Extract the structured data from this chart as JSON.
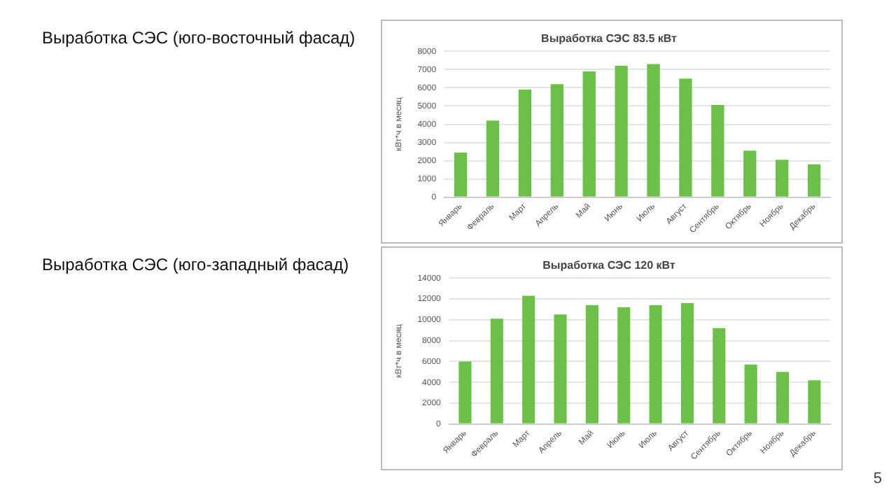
{
  "chart_data": [
    {
      "type": "bar",
      "subtitle": "Выработка СЭС (юго-восточный фасад)",
      "title": "Выработка СЭС 83.5 кВт",
      "ylabel": "кВт*ч в месяц",
      "categories": [
        "Январь",
        "Февраль",
        "Март",
        "Апрель",
        "Май",
        "Июнь",
        "Июль",
        "Август",
        "Сентябрь",
        "Октябрь",
        "Ноябрь",
        "Декабрь"
      ],
      "values": [
        2450,
        4200,
        5900,
        6200,
        6900,
        7200,
        7300,
        6500,
        5050,
        2550,
        2050,
        1800
      ],
      "color": "#6cc04a",
      "ylim": [
        0,
        8000
      ],
      "yticks": [
        0,
        1000,
        2000,
        3000,
        4000,
        5000,
        6000,
        7000,
        8000
      ],
      "grid": "y"
    },
    {
      "type": "bar",
      "subtitle": "Выработка СЭС (юго-западный фасад)",
      "title": "Выработка СЭС 120 кВт",
      "ylabel": "кВт*ч в месяц",
      "categories": [
        "Январь",
        "Февраль",
        "Март",
        "Апрель",
        "Май",
        "Июнь",
        "Июль",
        "Август",
        "Сентябрь",
        "Октябрь",
        "Ноябрь",
        "Декабрь"
      ],
      "values": [
        6000,
        10100,
        12300,
        10500,
        11400,
        11200,
        11400,
        11600,
        9200,
        5700,
        5000,
        4200
      ],
      "color": "#6cc04a",
      "ylim": [
        0,
        14000
      ],
      "yticks": [
        0,
        2000,
        4000,
        6000,
        8000,
        10000,
        12000,
        14000
      ],
      "grid": "y",
      "annotations": [
        "5"
      ]
    }
  ]
}
